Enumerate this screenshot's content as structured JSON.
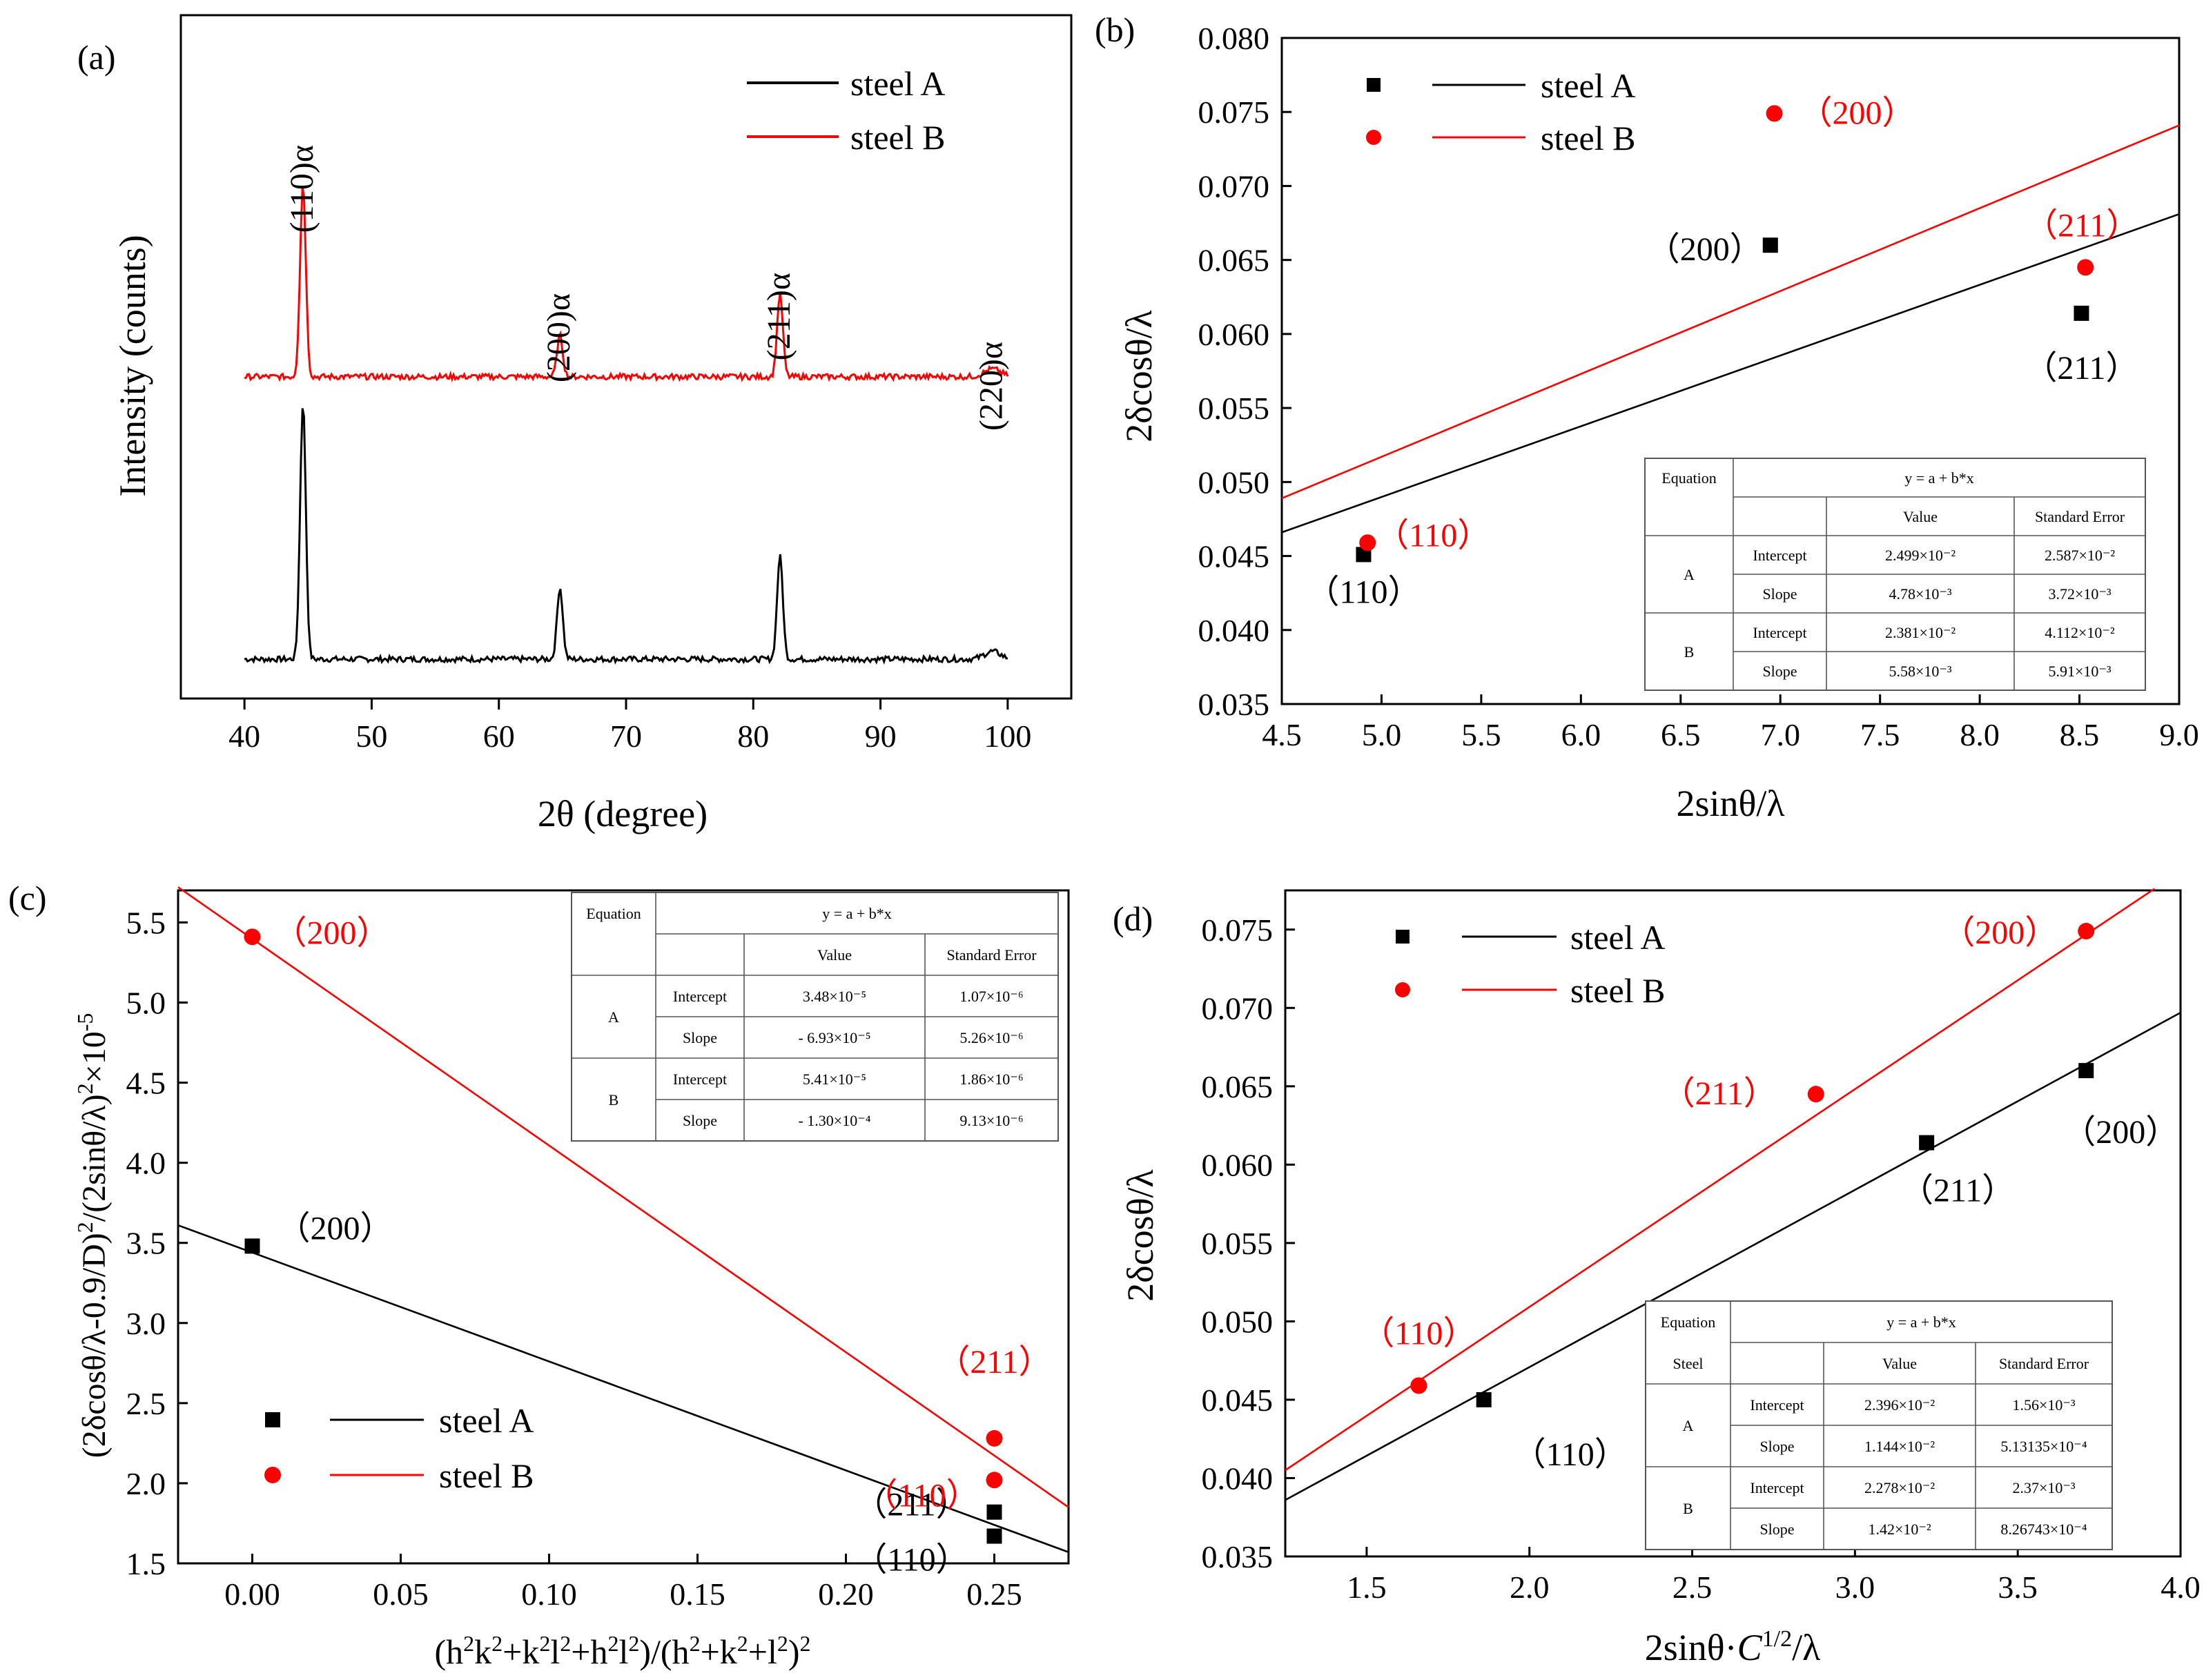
{
  "colors": {
    "series_A": "#000000",
    "series_B": "#ff0000",
    "axis": "#000000",
    "table_line": "#555555"
  },
  "legend": {
    "steel_a": "steel A",
    "steel_b": "steel B"
  },
  "chart_data": [
    {
      "id": "a",
      "panel_label": "(a)",
      "type": "line",
      "title": "",
      "xlabel": "2θ (degree)",
      "ylabel": "Intensity (counts)",
      "xlim": [
        35,
        105
      ],
      "xticks": [
        "40",
        "50",
        "60",
        "70",
        "80",
        "90",
        "100"
      ],
      "y_axis": "offset curves, no tick labels",
      "legend_position": "top-right",
      "series": [
        {
          "name": "steel A",
          "color": "#000000",
          "baseline": 0.0,
          "peaks": [
            {
              "x": 44.6,
              "height": 1.0
            },
            {
              "x": 64.8,
              "height": 0.28
            },
            {
              "x": 82.1,
              "height": 0.4
            },
            {
              "x": 98.8,
              "height": 0.03
            }
          ]
        },
        {
          "name": "steel B",
          "color": "#ff0000",
          "baseline": 1.1,
          "peaks": [
            {
              "x": 44.6,
              "height": 0.75
            },
            {
              "x": 64.8,
              "height": 0.16
            },
            {
              "x": 82.1,
              "height": 0.32
            },
            {
              "x": 98.8,
              "height": 0.03
            }
          ]
        }
      ],
      "annotations": [
        {
          "text": "(110)α",
          "x": 44.6
        },
        {
          "text": "(200)α",
          "x": 64.8
        },
        {
          "text": "(211)α",
          "x": 82.1
        },
        {
          "text": "(220)α",
          "x": 98.8
        }
      ]
    },
    {
      "id": "b",
      "panel_label": "(b)",
      "type": "scatter",
      "xlabel": "2sinθ/λ",
      "ylabel": "2δcosθ/λ",
      "xlim": [
        4.5,
        9.0
      ],
      "ylim": [
        0.035,
        0.08
      ],
      "xticks": [
        "4.5",
        "5.0",
        "5.5",
        "6.0",
        "6.5",
        "7.0",
        "7.5",
        "8.0",
        "8.5",
        "9.0"
      ],
      "yticks": [
        "0.035",
        "0.040",
        "0.045",
        "0.050",
        "0.055",
        "0.060",
        "0.065",
        "0.070",
        "0.075",
        "0.080"
      ],
      "legend_position": "top-left",
      "series": [
        {
          "name": "steel A",
          "color": "#000000",
          "marker": "square",
          "x": [
            4.91,
            6.95,
            8.51
          ],
          "y": [
            0.0451,
            0.066,
            0.0614
          ],
          "fit": {
            "x": [
              4.5,
              9.0
            ],
            "y": [
              0.0466,
              0.0681
            ]
          },
          "point_labels": [
            "（110）",
            "（200）",
            "（211）"
          ]
        },
        {
          "name": "steel B",
          "color": "#ff0000",
          "marker": "circle",
          "x": [
            4.93,
            6.97,
            8.53
          ],
          "y": [
            0.0459,
            0.0749,
            0.0645
          ],
          "fit": {
            "x": [
              4.5,
              9.0
            ],
            "y": [
              0.0489,
              0.0741
            ]
          },
          "point_labels": [
            "（110）",
            "（200）",
            "（211）"
          ]
        }
      ],
      "table": {
        "header": [
          "Equation",
          "y = a + b*x"
        ],
        "subheader": [
          "",
          "",
          "Value",
          "Standard Error"
        ],
        "rows": [
          [
            "A",
            "Intercept",
            "2.499×10⁻²",
            "2.587×10⁻²"
          ],
          [
            "",
            "Slope",
            "4.78×10⁻³",
            "3.72×10⁻³"
          ],
          [
            "B",
            "Intercept",
            "2.381×10⁻²",
            "4.112×10⁻²"
          ],
          [
            "",
            "Slope",
            "5.58×10⁻³",
            "5.91×10⁻³"
          ]
        ]
      }
    },
    {
      "id": "c",
      "panel_label": "(c)",
      "type": "scatter",
      "xlabel": "(h²k²+k²l²+h²l²)/(h²+k²+l²)²",
      "ylabel": "(2δcosθ/λ-0.9/D)²/(2sinθ/λ)²×10⁻⁵",
      "xlim": [
        -0.025,
        0.275
      ],
      "ylim": [
        1.5,
        5.7
      ],
      "xticks": [
        "0.00",
        "0.05",
        "0.10",
        "0.15",
        "0.20",
        "0.25"
      ],
      "yticks": [
        "1.5",
        "2.0",
        "2.5",
        "3.0",
        "3.5",
        "4.0",
        "4.5",
        "5.0",
        "5.5"
      ],
      "legend_position": "bottom-left",
      "series": [
        {
          "name": "steel A",
          "color": "#000000",
          "marker": "square",
          "x": [
            0.0,
            0.25,
            0.25
          ],
          "y": [
            3.48,
            1.82,
            1.67
          ],
          "fit": {
            "x": [
              -0.025,
              0.275
            ],
            "y": [
              3.61,
              1.57
            ]
          },
          "point_labels": [
            "（200）",
            "（211）",
            "（110）"
          ]
        },
        {
          "name": "steel B",
          "color": "#ff0000",
          "marker": "circle",
          "x": [
            0.0,
            0.25,
            0.25
          ],
          "y": [
            5.41,
            2.28,
            2.02
          ],
          "fit": {
            "x": [
              -0.025,
              0.275
            ],
            "y": [
              5.72,
              1.85
            ]
          },
          "point_labels": [
            "（200）",
            "（211）",
            "（110）"
          ]
        }
      ],
      "table": {
        "header": [
          "Equation",
          "y = a + b*x"
        ],
        "subheader": [
          "",
          "",
          "Value",
          "Standard Error"
        ],
        "rows": [
          [
            "A",
            "Intercept",
            "3.48×10⁻⁵",
            "1.07×10⁻⁶"
          ],
          [
            "",
            "Slope",
            "- 6.93×10⁻⁵",
            "5.26×10⁻⁶"
          ],
          [
            "B",
            "Intercept",
            "5.41×10⁻⁵",
            "1.86×10⁻⁶"
          ],
          [
            "",
            "Slope",
            "- 1.30×10⁻⁴",
            "9.13×10⁻⁶"
          ]
        ]
      }
    },
    {
      "id": "d",
      "panel_label": "(d)",
      "type": "scatter",
      "xlabel": "2sinθ·C1/2/λ",
      "ylabel": "2δcosθ/λ",
      "xlim": [
        1.25,
        4.0
      ],
      "ylim": [
        0.035,
        0.0775
      ],
      "xticks": [
        "1.5",
        "2.0",
        "2.5",
        "3.0",
        "3.5",
        "4.0"
      ],
      "yticks": [
        "0.035",
        "0.040",
        "0.045",
        "0.050",
        "0.055",
        "0.060",
        "0.065",
        "0.070",
        "0.075"
      ],
      "legend_position": "top-left",
      "series": [
        {
          "name": "steel A",
          "color": "#000000",
          "marker": "square",
          "x": [
            1.86,
            3.22,
            3.71
          ],
          "y": [
            0.045,
            0.0614,
            0.066
          ],
          "fit": {
            "x": [
              1.25,
              4.0
            ],
            "y": [
              0.0386,
              0.0697
            ]
          },
          "point_labels": [
            "（110）",
            "（211）",
            "（200）"
          ]
        },
        {
          "name": "steel B",
          "color": "#ff0000",
          "marker": "circle",
          "x": [
            1.66,
            2.88,
            3.71
          ],
          "y": [
            0.0459,
            0.0645,
            0.0749
          ],
          "fit": {
            "x": [
              1.25,
              3.92
            ],
            "y": [
              0.0405,
              0.0776
            ]
          },
          "point_labels": [
            "（110）",
            "（211）",
            "（200）"
          ]
        }
      ],
      "table": {
        "header": [
          "Equation",
          "y = a + b*x"
        ],
        "subheader": [
          "Steel",
          "",
          "Value",
          "Standard Error"
        ],
        "rows": [
          [
            "A",
            "Intercept",
            "2.396×10⁻²",
            "1.56×10⁻³"
          ],
          [
            "",
            "Slope",
            "1.144×10⁻²",
            "5.13135×10⁻⁴"
          ],
          [
            "B",
            "Intercept",
            "2.278×10⁻²",
            "2.37×10⁻³"
          ],
          [
            "",
            "Slope",
            "1.42×10⁻²",
            "8.26743×10⁻⁴"
          ]
        ]
      }
    }
  ]
}
